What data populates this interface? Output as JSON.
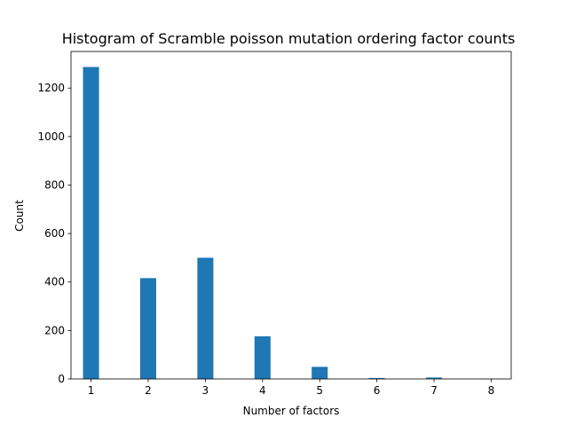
{
  "chart_data": {
    "type": "bar",
    "title": "Histogram of Scramble poisson mutation ordering factor counts",
    "xlabel": "Number of factors",
    "ylabel": "Count",
    "bar_color": "#1f77b4",
    "bars": [
      {
        "x": 1,
        "value": 1287
      },
      {
        "x": 2,
        "value": 416
      },
      {
        "x": 3,
        "value": 500
      },
      {
        "x": 4,
        "value": 176
      },
      {
        "x": 5,
        "value": 50
      },
      {
        "x": 6,
        "value": 4
      },
      {
        "x": 7,
        "value": 6
      },
      {
        "x": 8,
        "value": 1
      }
    ],
    "bin_width": 0.28,
    "xlim": [
      0.65,
      8.35
    ],
    "ylim": [
      0,
      1351
    ],
    "xticks": [
      1,
      2,
      3,
      4,
      5,
      6,
      7,
      8
    ],
    "xtick_labels": [
      "1",
      "2",
      "3",
      "4",
      "5",
      "6",
      "7",
      "8"
    ],
    "yticks": [
      0,
      200,
      400,
      600,
      800,
      1000,
      1200
    ],
    "ytick_labels": [
      "0",
      "200",
      "400",
      "600",
      "800",
      "1000",
      "1200"
    ],
    "grid": false,
    "legend": "none"
  }
}
